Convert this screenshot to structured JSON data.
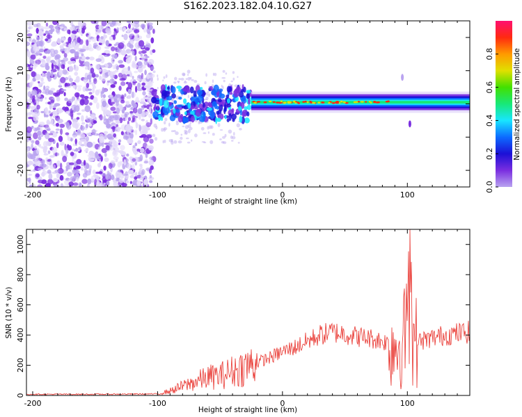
{
  "title": "S162.2023.182.04.10.G27",
  "colors": {
    "snr_line": "#e8302a",
    "spectrum_noise": "#8a2be2",
    "colormap": [
      "#ffffff",
      "#b9a3f0",
      "#7a2ee0",
      "#1c10d6",
      "#0d6bff",
      "#18e6ff",
      "#18e878",
      "#42e000",
      "#e0e000",
      "#ff9a00",
      "#ff2a10",
      "#ff1070"
    ]
  },
  "chart_data": [
    {
      "type": "heatmap",
      "xlabel": "Height of straight line (km)",
      "ylabel": "Frequency (Hz)",
      "xlim": [
        -205,
        150
      ],
      "ylim": [
        -25,
        25
      ],
      "xticks": [
        -200,
        -100,
        0,
        100
      ],
      "yticks": [
        -20,
        -10,
        0,
        10,
        20
      ],
      "colorbar": {
        "label": "Normalized spectral amplitude",
        "range": [
          0,
          1
        ],
        "ticks": [
          "0.0",
          "0.2",
          "0.4",
          "0.6",
          "0.8"
        ]
      },
      "ridge": {
        "description_values": {
          "noise_region_x": [
            -205,
            -103
          ],
          "scatter_region_x": [
            -103,
            -25
          ],
          "ridge_x": [
            -25,
            150
          ],
          "ridge_frequency_hz": 0.5
        }
      }
    },
    {
      "type": "line",
      "xlabel": "Height of straight line (km)",
      "ylabel": "SNR (10 * v/v)",
      "xlim": [
        -205,
        150
      ],
      "ylim": [
        0,
        1100
      ],
      "xticks": [
        -200,
        -100,
        0,
        100
      ],
      "yticks": [
        0,
        200,
        400,
        600,
        800,
        1000
      ],
      "series": [
        {
          "x": [
            -205,
            -150,
            -100,
            -90,
            -80,
            -70,
            -60,
            -50,
            -40,
            -30,
            -20,
            -10,
            0,
            10,
            20,
            30,
            40,
            50,
            60,
            70,
            80,
            90,
            95,
            100,
            102,
            105,
            110,
            120,
            130,
            140,
            150
          ],
          "y": [
            8,
            8,
            10,
            30,
            60,
            90,
            120,
            130,
            160,
            190,
            220,
            250,
            290,
            320,
            360,
            400,
            420,
            410,
            390,
            380,
            360,
            340,
            350,
            420,
            1080,
            350,
            360,
            380,
            400,
            410,
            420
          ]
        }
      ]
    }
  ]
}
